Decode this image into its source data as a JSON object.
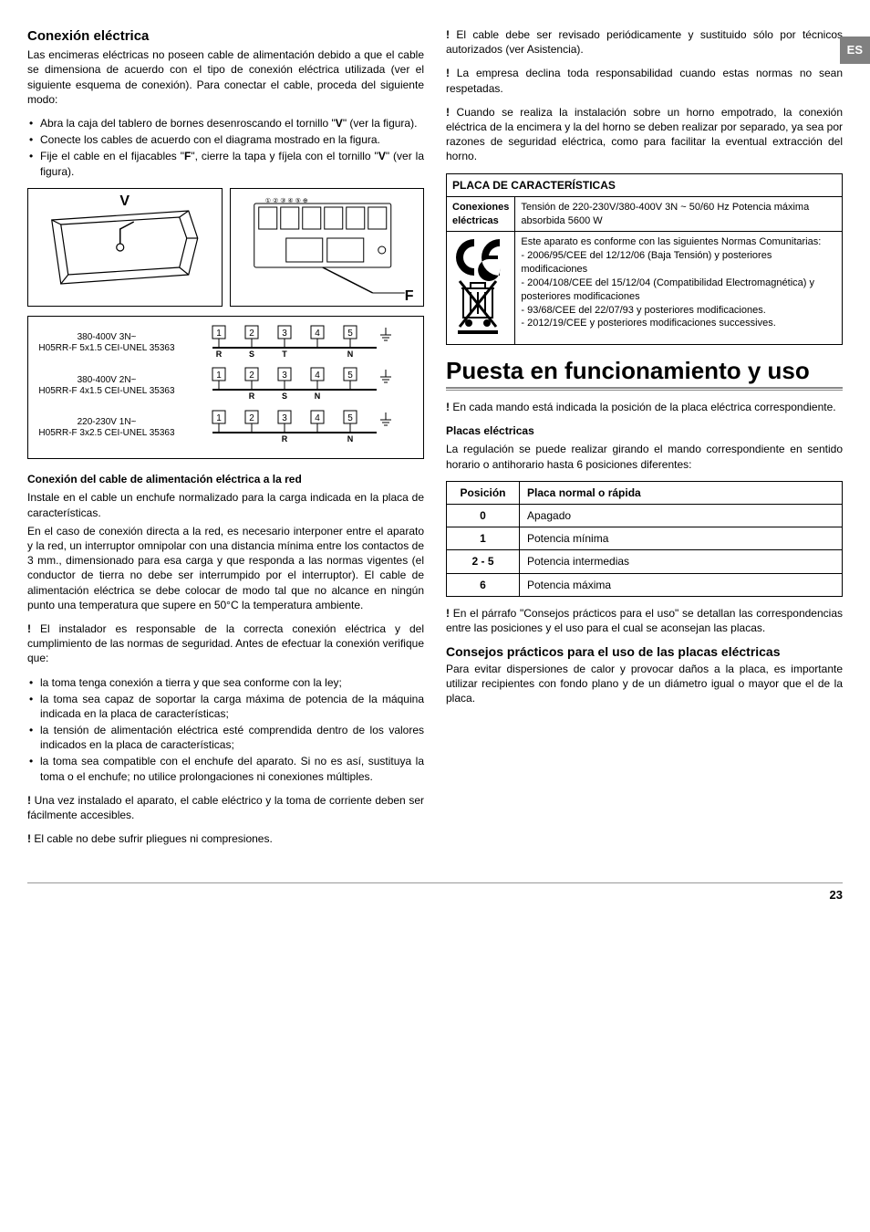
{
  "lang_tab": "ES",
  "page_number": "23",
  "left": {
    "h_conexion": "Conexión eléctrica",
    "p_intro": "Las encimeras eléctricas no poseen cable de alimentación debido a que el cable se dimensiona de acuerdo con el tipo de conexión eléctrica utilizada (ver el siguiente esquema de conexión). Para conectar el cable, proceda del siguiente modo:",
    "steps": [
      "Abra la caja del tablero de bornes desenroscando el tornillo \"V\" (ver la figura).",
      "Conecte los cables de acuerdo con el diagrama mostrado en la figura.",
      "Fije el cable en el fijacables \"F\", cierre la tapa y fíjela con el tornillo \"V\" (ver la figura)."
    ],
    "diag_labels": {
      "V": "V",
      "F": "F"
    },
    "wiring": [
      {
        "v": "380-400V 3N~",
        "c": "H05RR-F 5x1.5 CEI-UNEL 35363",
        "labels": [
          "R",
          "S",
          "T",
          "",
          "N"
        ]
      },
      {
        "v": "380-400V 2N~",
        "c": "H05RR-F 4x1.5 CEI-UNEL 35363",
        "labels": [
          "",
          "R",
          "S",
          "N",
          ""
        ]
      },
      {
        "v": "220-230V 1N~",
        "c": "H05RR-F 3x2.5 CEI-UNEL 35363",
        "labels": [
          "",
          "",
          "R",
          "",
          "N"
        ]
      }
    ],
    "h_cable": "Conexión del cable de alimentación eléctrica a la red",
    "p_cable1": "Instale en el cable un enchufe normalizado para la carga indicada en la placa de características.",
    "p_cable2": "En el caso de conexión directa a la red, es necesario interponer entre el aparato y la red, un interruptor omnipolar con una distancia mínima entre los contactos de 3 mm., dimensionado para esa carga y que responda a las normas vigentes (el conductor de tierra no debe ser interrumpido por el interruptor). El cable de alimentación eléctrica se debe colocar de modo tal que no alcance en ningún punto una temperatura que supere en 50°C la temperatura ambiente.",
    "p_inst": "! El instalador es responsable de la correcta conexión eléctrica y del cumplimiento de las normas de seguridad. Antes de efectuar la conexión verifique que:",
    "checks": [
      "la toma tenga conexión a tierra y que sea conforme con la ley;",
      "la toma sea capaz de soportar la carga máxima de potencia de la máquina indicada en la placa de características;",
      "la tensión de alimentación eléctrica esté comprendida dentro de los valores indicados en la placa de características;",
      "la toma sea compatible con el enchufe del aparato. Si no es así, sustituya la toma o el enchufe; no utilice prolongaciones ni conexiones múltiples."
    ],
    "p_w1": "! Una vez instalado el aparato, el cable eléctrico y la toma de corriente deben ser fácilmente accesibles.",
    "p_w2": "! El cable no debe sufrir pliegues ni compresiones."
  },
  "right": {
    "p_w3": "! El cable debe ser revisado periódicamente y sustituido sólo por técnicos autorizados (ver Asistencia).",
    "p_w4": "! La empresa declina toda responsabilidad cuando estas normas no sean respetadas.",
    "p_w5": "! Cuando se realiza la instalación sobre un horno empotrado, la conexión eléctrica de la encimera y la del horno se deben realizar por separado, ya sea por razones de seguridad eléctrica, como para facilitar la eventual extracción del horno.",
    "char_title": "PLACA DE CARACTERÍSTICAS",
    "char_r1_k": "Conexiones eléctricas",
    "char_r1_v": "Tensión de 220-230V/380-400V 3N ~ 50/60 Hz Potencia máxima absorbida 5600 W",
    "char_r2_v": "Este aparato es conforme con las siguientes Normas Comunitarias:\n- 2006/95/CEE del 12/12/06 (Baja Tensión) y posteriores modificaciones\n- 2004/108/CEE del 15/12/04 (Compatibilidad Electromagnética) y posteriores modificaciones\n- 93/68/CEE del 22/07/93 y posteriores modificaciones.\n- 2012/19/CEE y posteriores modificaciones successives.",
    "h_puesta": "Puesta en funcionamiento y uso",
    "p_mando": "! En cada mando está indicada la posición de la placa eléctrica correspondiente.",
    "h_placas": "Placas eléctricas",
    "p_placas": "La regulación se puede realizar girando el mando correspondiente en sentido horario o antihorario hasta 6 posiciones diferentes:",
    "pos_table": {
      "h1": "Posición",
      "h2": "Placa normal o rápida",
      "rows": [
        [
          "0",
          "Apagado"
        ],
        [
          "1",
          "Potencia mínima"
        ],
        [
          "2 - 5",
          "Potencia intermedias"
        ],
        [
          "6",
          "Potencia máxima"
        ]
      ]
    },
    "p_consejos_ref": "! En el párrafo \"Consejos prácticos para el uso\" se detallan las correspondencias entre las posiciones y el uso para el cual se aconsejan las placas.",
    "h_consejos": "Consejos prácticos para el uso de las placas eléctricas",
    "p_consejos": "Para evitar dispersiones de calor y provocar daños a la placa, es importante utilizar recipientes con fondo plano y de un diámetro igual o mayor que el de la placa."
  }
}
